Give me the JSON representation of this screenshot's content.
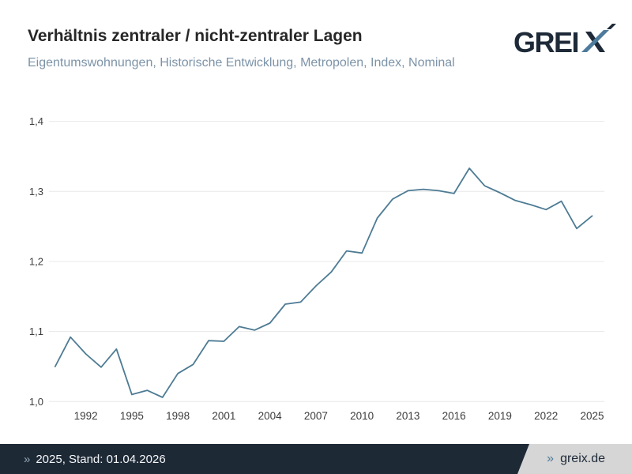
{
  "header": {
    "title": "Verhältnis zentraler / nicht-zentraler Lagen",
    "subtitle": "Eigentumswohnungen, Historische Entwicklung, Metropolen, Index, Nominal",
    "logo": {
      "text": "GREI",
      "dark": "#1e2a38",
      "blue": "#4d7b9c"
    }
  },
  "chart_data": {
    "type": "line",
    "title": "Verhältnis zentraler / nicht-zentraler Lagen",
    "xlabel": "",
    "ylabel": "",
    "x": [
      1990,
      1991,
      1992,
      1993,
      1994,
      1995,
      1996,
      1997,
      1998,
      1999,
      2000,
      2001,
      2002,
      2003,
      2004,
      2005,
      2006,
      2007,
      2008,
      2009,
      2010,
      2011,
      2012,
      2013,
      2014,
      2015,
      2016,
      2017,
      2018,
      2019,
      2020,
      2021,
      2022,
      2023,
      2024,
      2025
    ],
    "series": [
      {
        "name": "Verhältnis zentraler / nicht-zentraler Lagen",
        "values": [
          1.05,
          1.092,
          1.068,
          1.049,
          1.075,
          1.01,
          1.016,
          1.006,
          1.04,
          1.053,
          1.087,
          1.086,
          1.107,
          1.102,
          1.112,
          1.139,
          1.142,
          1.165,
          1.185,
          1.215,
          1.212,
          1.262,
          1.289,
          1.301,
          1.303,
          1.301,
          1.297,
          1.333,
          1.308,
          1.298,
          1.287,
          1.281,
          1.274,
          1.286,
          1.247,
          1.265
        ]
      }
    ],
    "ylim": [
      1.0,
      1.4
    ],
    "xlim": [
      1989.6,
      2025.8
    ],
    "yticks": [
      {
        "v": 1.0,
        "label": "1,0"
      },
      {
        "v": 1.1,
        "label": "1,1"
      },
      {
        "v": 1.2,
        "label": "1,2"
      },
      {
        "v": 1.3,
        "label": "1,3"
      },
      {
        "v": 1.4,
        "label": "1,4"
      }
    ],
    "xticks": [
      1992,
      1995,
      1998,
      2001,
      2004,
      2007,
      2010,
      2013,
      2016,
      2019,
      2022,
      2025
    ],
    "grid": "horizontal",
    "legend": "none",
    "line_color": "#4d7b94",
    "grid_color": "#e8e8e8",
    "tick_color": "#3d3d3d"
  },
  "footer": {
    "left": {
      "chevron": "»",
      "text": "2025, Stand: 01.04.2026"
    },
    "right": {
      "chevron": "»",
      "text": "greix.de"
    }
  }
}
